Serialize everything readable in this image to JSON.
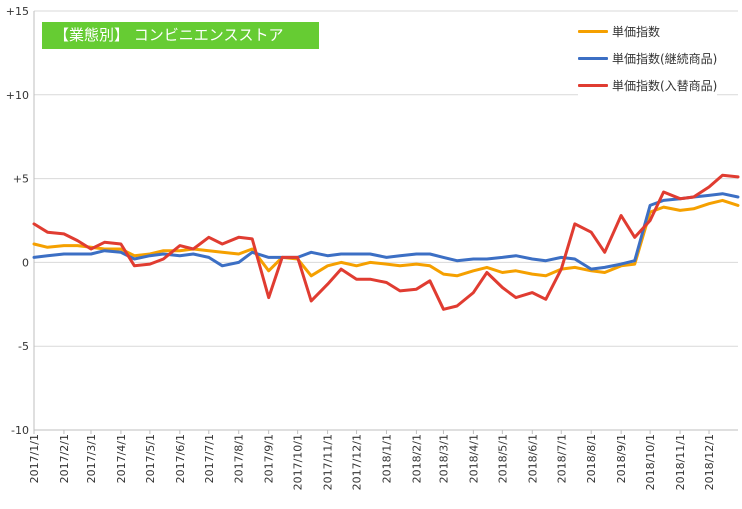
{
  "chart_data": {
    "type": "line",
    "title": "【業態別】 コンビニエンスストア",
    "ylim": [
      -10,
      15
    ],
    "y_ticks": [
      15,
      10,
      5,
      0,
      -5,
      -10
    ],
    "y_tick_labels": [
      "+15",
      "+10",
      "+5",
      "0",
      "-5",
      "-10"
    ],
    "x_range": [
      "2017-01-01",
      "2018-12-31"
    ],
    "x_ticks": [
      "2017-01-01",
      "2017-02-01",
      "2017-03-01",
      "2017-04-01",
      "2017-05-01",
      "2017-06-01",
      "2017-07-01",
      "2017-08-01",
      "2017-09-01",
      "2017-10-01",
      "2017-11-01",
      "2017-12-01",
      "2018-01-01",
      "2018-02-01",
      "2018-03-01",
      "2018-04-01",
      "2018-05-01",
      "2018-06-01",
      "2018-07-01",
      "2018-08-01",
      "2018-09-01",
      "2018-10-01",
      "2018-11-01",
      "2018-12-01"
    ],
    "x_tick_labels": [
      "2017/1/1",
      "2017/2/1",
      "2017/3/1",
      "2017/4/1",
      "2017/5/1",
      "2017/6/1",
      "2017/7/1",
      "2017/8/1",
      "2017/9/1",
      "2017/10/1",
      "2017/11/1",
      "2017/12/1",
      "2018/1/1",
      "2018/2/1",
      "2018/3/1",
      "2018/4/1",
      "2018/5/1",
      "2018/6/1",
      "2018/7/1",
      "2018/8/1",
      "2018/9/1",
      "2018/10/1",
      "2018/11/1",
      "2018/12/1"
    ],
    "grid": true,
    "legend_position": "top-right",
    "series": [
      {
        "name": "単価指数",
        "color": "#f5a000",
        "points": [
          [
            "2017-01-01",
            1.1
          ],
          [
            "2017-01-15",
            0.9
          ],
          [
            "2017-02-01",
            1.0
          ],
          [
            "2017-02-15",
            1.0
          ],
          [
            "2017-03-01",
            0.9
          ],
          [
            "2017-03-15",
            0.8
          ],
          [
            "2017-04-01",
            0.8
          ],
          [
            "2017-04-15",
            0.4
          ],
          [
            "2017-05-01",
            0.5
          ],
          [
            "2017-05-15",
            0.7
          ],
          [
            "2017-06-01",
            0.7
          ],
          [
            "2017-06-15",
            0.8
          ],
          [
            "2017-07-01",
            0.7
          ],
          [
            "2017-07-15",
            0.6
          ],
          [
            "2017-08-01",
            0.5
          ],
          [
            "2017-08-15",
            0.8
          ],
          [
            "2017-09-01",
            -0.5
          ],
          [
            "2017-09-15",
            0.3
          ],
          [
            "2017-10-01",
            0.2
          ],
          [
            "2017-10-15",
            -0.8
          ],
          [
            "2017-11-01",
            -0.2
          ],
          [
            "2017-11-15",
            0.0
          ],
          [
            "2017-12-01",
            -0.2
          ],
          [
            "2017-12-15",
            0.0
          ],
          [
            "2018-01-01",
            -0.1
          ],
          [
            "2018-01-15",
            -0.2
          ],
          [
            "2018-02-01",
            -0.1
          ],
          [
            "2018-02-15",
            -0.2
          ],
          [
            "2018-03-01",
            -0.7
          ],
          [
            "2018-03-15",
            -0.8
          ],
          [
            "2018-04-01",
            -0.5
          ],
          [
            "2018-04-15",
            -0.3
          ],
          [
            "2018-05-01",
            -0.6
          ],
          [
            "2018-05-15",
            -0.5
          ],
          [
            "2018-06-01",
            -0.7
          ],
          [
            "2018-06-15",
            -0.8
          ],
          [
            "2018-07-01",
            -0.4
          ],
          [
            "2018-07-15",
            -0.3
          ],
          [
            "2018-08-01",
            -0.5
          ],
          [
            "2018-08-15",
            -0.6
          ],
          [
            "2018-09-01",
            -0.2
          ],
          [
            "2018-09-15",
            -0.1
          ],
          [
            "2018-10-01",
            3.0
          ],
          [
            "2018-10-15",
            3.3
          ],
          [
            "2018-11-01",
            3.1
          ],
          [
            "2018-11-15",
            3.2
          ],
          [
            "2018-12-01",
            3.5
          ],
          [
            "2018-12-15",
            3.7
          ],
          [
            "2018-12-31",
            3.4
          ]
        ]
      },
      {
        "name": "単価指数(継続商品)",
        "color": "#3c6fc4",
        "points": [
          [
            "2017-01-01",
            0.3
          ],
          [
            "2017-01-15",
            0.4
          ],
          [
            "2017-02-01",
            0.5
          ],
          [
            "2017-02-15",
            0.5
          ],
          [
            "2017-03-01",
            0.5
          ],
          [
            "2017-03-15",
            0.7
          ],
          [
            "2017-04-01",
            0.6
          ],
          [
            "2017-04-15",
            0.2
          ],
          [
            "2017-05-01",
            0.4
          ],
          [
            "2017-05-15",
            0.5
          ],
          [
            "2017-06-01",
            0.4
          ],
          [
            "2017-06-15",
            0.5
          ],
          [
            "2017-07-01",
            0.3
          ],
          [
            "2017-07-15",
            -0.2
          ],
          [
            "2017-08-01",
            0.0
          ],
          [
            "2017-08-15",
            0.6
          ],
          [
            "2017-09-01",
            0.3
          ],
          [
            "2017-09-15",
            0.3
          ],
          [
            "2017-10-01",
            0.3
          ],
          [
            "2017-10-15",
            0.6
          ],
          [
            "2017-11-01",
            0.4
          ],
          [
            "2017-11-15",
            0.5
          ],
          [
            "2017-12-01",
            0.5
          ],
          [
            "2017-12-15",
            0.5
          ],
          [
            "2018-01-01",
            0.3
          ],
          [
            "2018-01-15",
            0.4
          ],
          [
            "2018-02-01",
            0.5
          ],
          [
            "2018-02-15",
            0.5
          ],
          [
            "2018-03-01",
            0.3
          ],
          [
            "2018-03-15",
            0.1
          ],
          [
            "2018-04-01",
            0.2
          ],
          [
            "2018-04-15",
            0.2
          ],
          [
            "2018-05-01",
            0.3
          ],
          [
            "2018-05-15",
            0.4
          ],
          [
            "2018-06-01",
            0.2
          ],
          [
            "2018-06-15",
            0.1
          ],
          [
            "2018-07-01",
            0.3
          ],
          [
            "2018-07-15",
            0.2
          ],
          [
            "2018-08-01",
            -0.4
          ],
          [
            "2018-08-15",
            -0.3
          ],
          [
            "2018-09-01",
            -0.1
          ],
          [
            "2018-09-15",
            0.1
          ],
          [
            "2018-10-01",
            3.4
          ],
          [
            "2018-10-15",
            3.7
          ],
          [
            "2018-11-01",
            3.8
          ],
          [
            "2018-11-15",
            3.9
          ],
          [
            "2018-12-01",
            4.0
          ],
          [
            "2018-12-15",
            4.1
          ],
          [
            "2018-12-31",
            3.9
          ]
        ]
      },
      {
        "name": "単価指数(入替商品)",
        "color": "#e03c31",
        "points": [
          [
            "2017-01-01",
            2.3
          ],
          [
            "2017-01-15",
            1.8
          ],
          [
            "2017-02-01",
            1.7
          ],
          [
            "2017-02-15",
            1.3
          ],
          [
            "2017-03-01",
            0.8
          ],
          [
            "2017-03-15",
            1.2
          ],
          [
            "2017-04-01",
            1.1
          ],
          [
            "2017-04-15",
            -0.2
          ],
          [
            "2017-05-01",
            -0.1
          ],
          [
            "2017-05-15",
            0.2
          ],
          [
            "2017-06-01",
            1.0
          ],
          [
            "2017-06-15",
            0.8
          ],
          [
            "2017-07-01",
            1.5
          ],
          [
            "2017-07-15",
            1.1
          ],
          [
            "2017-08-01",
            1.5
          ],
          [
            "2017-08-15",
            1.4
          ],
          [
            "2017-09-01",
            -2.1
          ],
          [
            "2017-09-15",
            0.3
          ],
          [
            "2017-10-01",
            0.3
          ],
          [
            "2017-10-15",
            -2.3
          ],
          [
            "2017-11-01",
            -1.3
          ],
          [
            "2017-11-15",
            -0.4
          ],
          [
            "2017-12-01",
            -1.0
          ],
          [
            "2017-12-15",
            -1.0
          ],
          [
            "2018-01-01",
            -1.2
          ],
          [
            "2018-01-15",
            -1.7
          ],
          [
            "2018-02-01",
            -1.6
          ],
          [
            "2018-02-15",
            -1.1
          ],
          [
            "2018-03-01",
            -2.8
          ],
          [
            "2018-03-15",
            -2.6
          ],
          [
            "2018-04-01",
            -1.8
          ],
          [
            "2018-04-15",
            -0.6
          ],
          [
            "2018-05-01",
            -1.5
          ],
          [
            "2018-05-15",
            -2.1
          ],
          [
            "2018-06-01",
            -1.8
          ],
          [
            "2018-06-15",
            -2.2
          ],
          [
            "2018-07-01",
            -0.4
          ],
          [
            "2018-07-15",
            2.3
          ],
          [
            "2018-08-01",
            1.8
          ],
          [
            "2018-08-15",
            0.6
          ],
          [
            "2018-09-01",
            2.8
          ],
          [
            "2018-09-15",
            1.5
          ],
          [
            "2018-10-01",
            2.5
          ],
          [
            "2018-10-15",
            4.2
          ],
          [
            "2018-11-01",
            3.8
          ],
          [
            "2018-11-15",
            3.9
          ],
          [
            "2018-12-01",
            4.5
          ],
          [
            "2018-12-15",
            5.2
          ],
          [
            "2018-12-31",
            5.1
          ]
        ]
      }
    ]
  }
}
